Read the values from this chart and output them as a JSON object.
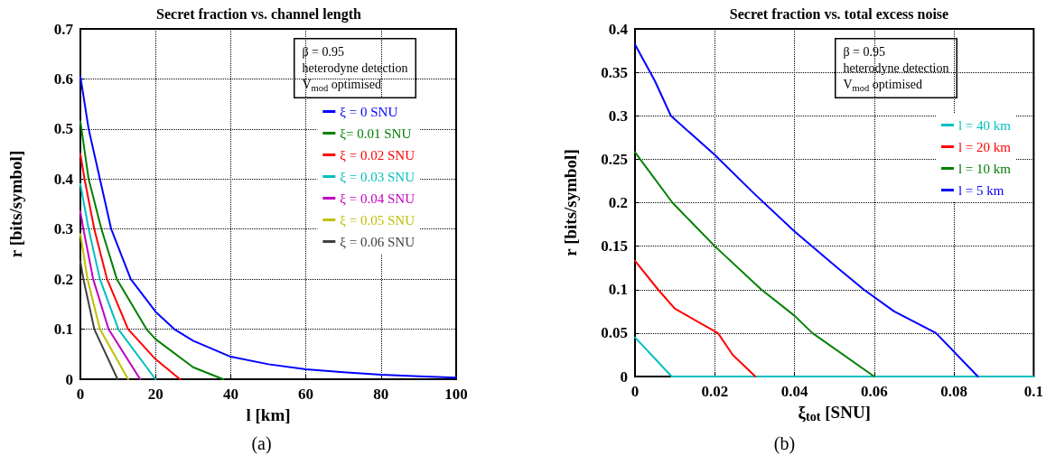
{
  "chart_data": [
    {
      "type": "line",
      "title": "Secret fraction vs. channel length",
      "xlabel": "l [km]",
      "ylabel": "r [bits/symbol]",
      "xlim": [
        0,
        100
      ],
      "xticks": [
        0,
        20,
        40,
        60,
        80,
        100
      ],
      "ylim": [
        0,
        0.7
      ],
      "yticks": [
        0,
        0.1,
        0.2,
        0.3,
        0.4,
        0.5,
        0.6,
        0.7
      ],
      "grid": true,
      "legend": "top right",
      "marker": "none",
      "line_style": "solid",
      "annotations": [
        "β = 0.95\nheterodyne detection\nV$_{mod}$ optimised",
        "(a)"
      ],
      "series": [
        {
          "name": "ξ = 0 SNU",
          "color": "#0000ff",
          "x": [
            0,
            2.2,
            5.2,
            8.2,
            13.4,
            20,
            25,
            30,
            40,
            50,
            60,
            70,
            80,
            90,
            100
          ],
          "values": [
            0.605,
            0.5,
            0.4,
            0.3,
            0.2,
            0.135,
            0.1,
            0.077,
            0.045,
            0.03,
            0.02,
            0.014,
            0.009,
            0.006,
            0.003
          ]
        },
        {
          "name": "ξ= 0.01 SNU",
          "color": "#008000",
          "x": [
            0,
            2.2,
            5.6,
            9.7,
            17.6,
            20,
            30,
            38
          ],
          "values": [
            0.515,
            0.4,
            0.3,
            0.2,
            0.1,
            0.08,
            0.024,
            0
          ]
        },
        {
          "name": "ξ = 0.02 SNU",
          "color": "#ff0000",
          "x": [
            0,
            1.1,
            3.7,
            7.1,
            12.7,
            20,
            26.5
          ],
          "values": [
            0.45,
            0.4,
            0.3,
            0.2,
            0.1,
            0.04,
            0
          ]
        },
        {
          "name": "ξ = 0.03 SNU",
          "color": "#00bfbf",
          "x": [
            0,
            2.2,
            5.2,
            10.1,
            20
          ],
          "values": [
            0.39,
            0.3,
            0.2,
            0.1,
            0
          ]
        },
        {
          "name": "ξ = 0.04 SNU",
          "color": "#bf00bf",
          "x": [
            0,
            0.8,
            3.4,
            7.5,
            15.9
          ],
          "values": [
            0.335,
            0.3,
            0.2,
            0.1,
            0
          ]
        },
        {
          "name": "ξ = 0.05 SNU",
          "color": "#bfbf00",
          "x": [
            0,
            1.9,
            5.2,
            12.7
          ],
          "values": [
            0.29,
            0.2,
            0.1,
            0
          ]
        },
        {
          "name": "ξ = 0.06 SNU",
          "color": "#404040",
          "x": [
            0,
            0.8,
            3.7,
            9.9
          ],
          "values": [
            0.235,
            0.2,
            0.1,
            0
          ]
        }
      ]
    },
    {
      "type": "line",
      "title": "Secret fraction vs. total excess noise",
      "xlabel": "ξ$_{tot}$ [SNU]",
      "ylabel": "r [bits/symbol]",
      "xlim": [
        0,
        0.1
      ],
      "xticks": [
        0,
        0.02,
        0.04,
        0.06,
        0.08,
        0.1
      ],
      "ylim": [
        0,
        0.4
      ],
      "yticks": [
        0,
        0.05,
        0.1,
        0.15,
        0.2,
        0.25,
        0.3,
        0.35,
        0.4
      ],
      "grid": true,
      "legend": "top right",
      "marker": "none",
      "line_style": "solid",
      "annotations": [
        "β = 0.95\nheterodyne detection\nV$_{mod}$ optimised",
        "(b)"
      ],
      "series": [
        {
          "name": "l = 40 km",
          "color": "#00bfbf",
          "x": [
            0,
            0.0092,
            0.1
          ],
          "values": [
            0.045,
            0,
            0
          ]
        },
        {
          "name": "l = 20 km",
          "color": "#ff0000",
          "x": [
            0,
            0.0058,
            0.01,
            0.0208,
            0.0245,
            0.0302
          ],
          "values": [
            0.133,
            0.1,
            0.078,
            0.05,
            0.025,
            0
          ]
        },
        {
          "name": "l = 10 km",
          "color": "#008000",
          "x": [
            0,
            0.0094,
            0.02,
            0.0317,
            0.04,
            0.0445,
            0.06
          ],
          "values": [
            0.258,
            0.2,
            0.15,
            0.1,
            0.07,
            0.05,
            0
          ]
        },
        {
          "name": "l = 5 km",
          "color": "#0000ff",
          "x": [
            0,
            0.005,
            0.009,
            0.02,
            0.03,
            0.04,
            0.05,
            0.0574,
            0.065,
            0.0755,
            0.086
          ],
          "values": [
            0.382,
            0.34,
            0.3,
            0.255,
            0.21,
            0.167,
            0.128,
            0.1,
            0.075,
            0.05,
            0
          ]
        }
      ]
    }
  ]
}
